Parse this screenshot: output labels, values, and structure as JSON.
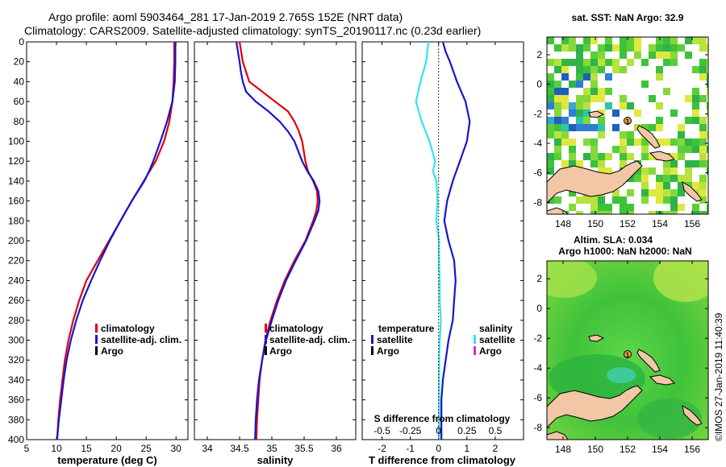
{
  "header": {
    "title_line1": "Argo profile: aoml 5903464_281 17-Jan-2019 2.765S 152E (NRT data)",
    "title_line2": "Climatology: CARS2009. Satellite-adjusted climatology: synTS_20190117.nc (0.23d earlier)"
  },
  "colors": {
    "climatology": "#e0000e",
    "satellite": "#1515d0",
    "argo": "#000000",
    "salinity_satellite": "#2fe6ec",
    "salinity_argo": "#d92ad9",
    "land": "#f2c7a6"
  },
  "chart_data": [
    {
      "id": "temperature",
      "type": "line",
      "xlabel": "temperature (deg C)",
      "ylabel": "",
      "xlim": [
        5,
        32
      ],
      "ylim": [
        400,
        0
      ],
      "xticks": [
        "5",
        "10",
        "15",
        "20",
        "25",
        "30"
      ],
      "yticks": [
        "0",
        "20",
        "40",
        "60",
        "80",
        "100",
        "120",
        "140",
        "160",
        "180",
        "200",
        "220",
        "240",
        "260",
        "280",
        "300",
        "320",
        "340",
        "360",
        "380",
        "400"
      ],
      "legend": {
        "position": "lower-right",
        "entries": [
          "climatology",
          "satellite-adj. clim.",
          "Argo"
        ]
      },
      "series": [
        {
          "name": "climatology",
          "color_key": "climatology",
          "depth": [
            0,
            20,
            40,
            60,
            80,
            100,
            120,
            130,
            140,
            160,
            180,
            200,
            220,
            240,
            260,
            280,
            300,
            320,
            340,
            360,
            380,
            400
          ],
          "values": [
            29.7,
            29.7,
            29.6,
            29.4,
            28.9,
            28.0,
            26.6,
            25.6,
            24.6,
            22.6,
            20.7,
            18.8,
            16.9,
            15.0,
            13.8,
            12.8,
            12.0,
            11.4,
            11.0,
            10.6,
            10.3,
            10.1
          ]
        },
        {
          "name": "satellite-adj. clim.",
          "color_key": "satellite",
          "depth": [
            0,
            20,
            40,
            60,
            80,
            100,
            120,
            130,
            140,
            160,
            180,
            200,
            220,
            240,
            260,
            280,
            300,
            320,
            340,
            360,
            380,
            400
          ],
          "values": [
            29.9,
            29.9,
            29.8,
            29.4,
            28.5,
            27.4,
            26.2,
            25.5,
            24.7,
            22.6,
            20.7,
            18.9,
            17.3,
            15.8,
            14.4,
            13.3,
            12.4,
            11.7,
            11.2,
            10.8,
            10.4,
            10.1
          ]
        }
      ]
    },
    {
      "id": "salinity",
      "type": "line",
      "xlabel": "salinity",
      "ylabel": "",
      "xlim": [
        33.8,
        36.3
      ],
      "ylim": [
        400,
        0
      ],
      "xticks": [
        "34",
        "34.5",
        "35",
        "35.5",
        "36"
      ],
      "legend": {
        "position": "lower-right",
        "entries": [
          "climatology",
          "satellite-adj. clim.",
          "Argo"
        ]
      },
      "series": [
        {
          "name": "climatology",
          "color_key": "climatology",
          "depth": [
            0,
            20,
            40,
            50,
            60,
            70,
            80,
            90,
            100,
            120,
            130,
            140,
            150,
            160,
            170,
            180,
            200,
            220,
            240,
            260,
            280,
            300,
            320,
            340,
            360,
            380,
            400
          ],
          "values": [
            34.5,
            34.55,
            34.65,
            34.85,
            35.05,
            35.25,
            35.35,
            35.42,
            35.47,
            35.52,
            35.56,
            35.64,
            35.7,
            35.71,
            35.69,
            35.64,
            35.52,
            35.35,
            35.2,
            35.08,
            34.98,
            34.9,
            34.85,
            34.81,
            34.79,
            34.77,
            34.76
          ]
        },
        {
          "name": "satellite-adj. clim.",
          "color_key": "satellite",
          "depth": [
            0,
            20,
            30,
            40,
            50,
            60,
            70,
            80,
            90,
            100,
            120,
            130,
            140,
            150,
            160,
            170,
            180,
            200,
            220,
            240,
            260,
            280,
            300,
            320,
            340,
            360,
            380,
            400
          ],
          "values": [
            34.45,
            34.5,
            34.52,
            34.55,
            34.6,
            34.75,
            34.95,
            35.12,
            35.25,
            35.35,
            35.47,
            35.55,
            35.65,
            35.72,
            35.74,
            35.72,
            35.66,
            35.53,
            35.37,
            35.22,
            35.1,
            35.0,
            34.91,
            34.85,
            34.8,
            34.77,
            34.75,
            34.74
          ]
        }
      ]
    },
    {
      "id": "difference",
      "type": "line",
      "xlabel": "T difference from climatology",
      "xlabel_top": "S difference from climatology",
      "xlim": [
        -2.7,
        3.0
      ],
      "ylim": [
        400,
        0
      ],
      "xticks": [
        "-2",
        "-1",
        "0",
        "1",
        "2"
      ],
      "xticks_s": [
        "-0.5",
        "-0.25",
        "0",
        "0.25",
        "0.5"
      ],
      "legend": {
        "position": "middle",
        "temperature_title": "temperature",
        "salinity_title": "salinity",
        "entries": [
          "satellite",
          "Argo",
          "satellite",
          "Argo"
        ]
      },
      "series": [
        {
          "name": "temperature satellite",
          "color_key": "satellite",
          "depth": [
            0,
            10,
            20,
            40,
            60,
            80,
            100,
            120,
            140,
            160,
            180,
            200,
            220,
            240,
            260,
            280,
            300,
            320,
            340,
            360,
            380,
            400
          ],
          "values": [
            0.15,
            0.25,
            0.4,
            0.65,
            0.95,
            1.1,
            1.0,
            0.75,
            0.5,
            0.3,
            0.2,
            0.35,
            0.55,
            0.6,
            0.55,
            0.5,
            0.35,
            0.25,
            0.15,
            0.1,
            0.1,
            0.1
          ]
        },
        {
          "name": "salinity satellite",
          "color_key": "salinity_satellite",
          "depth": [
            0,
            10,
            20,
            40,
            60,
            80,
            100,
            120,
            130,
            140,
            160,
            180,
            200,
            220,
            240,
            260,
            280,
            300,
            320,
            340,
            360,
            380,
            400
          ],
          "values": [
            -0.09,
            -0.1,
            -0.11,
            -0.16,
            -0.2,
            -0.15,
            -0.08,
            -0.03,
            -0.05,
            -0.02,
            -0.01,
            -0.02,
            0.005,
            0.005,
            0.01,
            0.01,
            0.02,
            0.01,
            0.005,
            0.005,
            0.005,
            0.005,
            0.005
          ]
        }
      ]
    }
  ],
  "maps": {
    "sst": {
      "title": "sat. SST: NaN Argo: 32.9",
      "xticks": [
        "148",
        "150",
        "152",
        "154",
        "156"
      ],
      "yticks": [
        "2",
        "0",
        "-2",
        "-4",
        "-6",
        "-8"
      ],
      "marker": "1"
    },
    "sla": {
      "title_line1": "Altim. SLA: 0.034",
      "title_line2": "Argo h1000: NaN h2000: NaN",
      "xticks": [
        "148",
        "150",
        "152",
        "154",
        "156"
      ],
      "yticks": [
        "2",
        "0",
        "-2",
        "-4",
        "-6",
        "-8"
      ],
      "marker": "1"
    }
  },
  "footer": {
    "credit": "©IMOS 27-Jan-2019 11:40:39"
  }
}
